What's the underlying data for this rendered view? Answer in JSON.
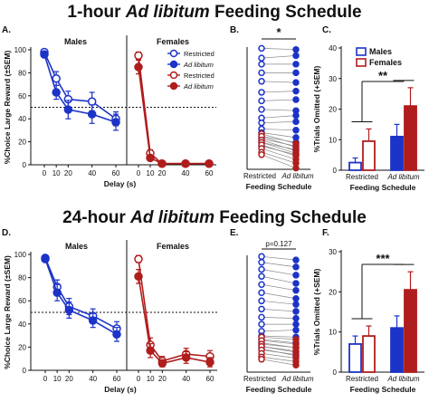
{
  "colors": {
    "blue": "#1c33c8",
    "red": "#b01d1d",
    "black": "#111111",
    "grey": "#888888"
  },
  "figure": {
    "title_top": {
      "pre": "1-hour ",
      "italic": "Ad libitum",
      "post": " Feeding Schedule"
    },
    "title_bottom": {
      "pre": "24-hour ",
      "italic": "Ad libitum",
      "post": " Feeding Schedule"
    }
  },
  "chart_data": [
    {
      "panel": "A.",
      "type": "line",
      "ylabel": "%Choice Large Reward (±SEM)",
      "xlabel": "Delay (s)",
      "ylim": [
        0,
        100
      ],
      "yticks": [
        0,
        20,
        40,
        60,
        80,
        100
      ],
      "xticks": [
        0,
        10,
        20,
        40,
        60
      ],
      "chance_line": 50,
      "groups": [
        {
          "title": "Males",
          "series": [
            {
              "name": "Restricted",
              "color": "blue",
              "filled": false,
              "x": [
                0,
                10,
                20,
                40,
                60
              ],
              "y": [
                98,
                75,
                57,
                55,
                40
              ],
              "sem": [
                2,
                6,
                7,
                8,
                6
              ]
            },
            {
              "name": "Ad libitum",
              "color": "blue",
              "filled": true,
              "x": [
                0,
                10,
                20,
                40,
                60
              ],
              "y": [
                96,
                63,
                48,
                44,
                37
              ],
              "sem": [
                2,
                6,
                8,
                8,
                7
              ]
            }
          ]
        },
        {
          "title": "Females",
          "series": [
            {
              "name": "Restricted",
              "color": "red",
              "filled": false,
              "x": [
                0,
                10,
                20,
                40,
                60
              ],
              "y": [
                95,
                10,
                1,
                1,
                1
              ],
              "sem": [
                3,
                3,
                1,
                1,
                1
              ]
            },
            {
              "name": "Ad libitum",
              "color": "red",
              "filled": true,
              "x": [
                0,
                10,
                20,
                40,
                60
              ],
              "y": [
                85,
                6,
                1,
                1,
                1
              ],
              "sem": [
                6,
                2,
                1,
                1,
                1
              ]
            }
          ]
        }
      ]
    },
    {
      "panel": "B.",
      "type": "scatter",
      "categories": [
        "Restricted",
        "Ad libitum"
      ],
      "xlabel": "Feeding Schedule",
      "annotation": "*",
      "ylim": [
        0,
        100
      ],
      "restricted_blue": [
        99,
        91,
        86,
        79,
        72,
        63,
        56,
        49,
        42,
        38,
        33,
        30,
        27,
        25,
        22,
        19
      ],
      "restricted_red": [
        29,
        27,
        24,
        22,
        20,
        17,
        14,
        12
      ],
      "libitum_blue": [
        98,
        93,
        86,
        79,
        71,
        64,
        57,
        48,
        44,
        39,
        32,
        26,
        22,
        19,
        16,
        12
      ],
      "libitum_red": [
        21,
        18,
        15,
        13,
        11,
        8,
        5,
        1
      ]
    },
    {
      "panel": "C.",
      "type": "bar",
      "ylabel": "%Trials Omitted (+SEM)",
      "xlabel": "Feeding Schedule",
      "ylim": [
        0,
        40
      ],
      "yticks": [
        0,
        10,
        20,
        30,
        40
      ],
      "categories": [
        "Restricted",
        "Ad libitum"
      ],
      "legend": {
        "position": "top-right",
        "items": [
          "Males",
          "Females"
        ]
      },
      "series": [
        {
          "name": "Males",
          "color": "blue",
          "values": [
            2.5,
            11
          ],
          "sem": [
            1.5,
            4
          ]
        },
        {
          "name": "Females",
          "color": "red",
          "values": [
            9.5,
            21
          ],
          "sem": [
            4,
            6
          ]
        }
      ],
      "annotation": "**"
    },
    {
      "panel": "D.",
      "type": "line",
      "ylabel": "%Choice Large Reward (±SEM)",
      "xlabel": "Delay (s)",
      "ylim": [
        0,
        100
      ],
      "yticks": [
        0,
        20,
        40,
        60,
        80,
        100
      ],
      "xticks": [
        0,
        10,
        20,
        40,
        60
      ],
      "chance_line": 50,
      "groups": [
        {
          "title": "Males",
          "series": [
            {
              "name": "Restricted",
              "color": "blue",
              "filled": false,
              "x": [
                0,
                10,
                20,
                40,
                60
              ],
              "y": [
                97,
                72,
                55,
                47,
                36
              ],
              "sem": [
                2,
                6,
                7,
                6,
                6
              ]
            },
            {
              "name": "Ad libitum",
              "color": "blue",
              "filled": true,
              "x": [
                0,
                10,
                20,
                40,
                60
              ],
              "y": [
                96,
                67,
                52,
                43,
                31
              ],
              "sem": [
                2,
                7,
                7,
                6,
                6
              ]
            }
          ]
        },
        {
          "title": "Females",
          "series": [
            {
              "name": "Restricted",
              "color": "red",
              "filled": false,
              "x": [
                0,
                10,
                20,
                40,
                60
              ],
              "y": [
                96,
                22,
                8,
                14,
                12
              ],
              "sem": [
                3,
                6,
                4,
                5,
                5
              ]
            },
            {
              "name": "Ad libitum",
              "color": "red",
              "filled": true,
              "x": [
                0,
                10,
                20,
                40,
                60
              ],
              "y": [
                81,
                17,
                6,
                11,
                7
              ],
              "sem": [
                6,
                6,
                3,
                5,
                4
              ]
            }
          ]
        }
      ]
    },
    {
      "panel": "E.",
      "type": "scatter",
      "categories": [
        "Restricted",
        "Ad libitum"
      ],
      "xlabel": "Feeding Schedule",
      "annotation": "p=0.127",
      "ylim": [
        0,
        100
      ],
      "restricted_blue": [
        99,
        94,
        88,
        82,
        75,
        68,
        61,
        54,
        47,
        41,
        35,
        31,
        28,
        25,
        22,
        20
      ],
      "restricted_red": [
        30,
        27,
        24,
        22,
        19,
        16,
        13,
        11
      ],
      "libitum_blue": [
        96,
        90,
        83,
        76,
        70,
        63,
        58,
        52,
        46,
        41,
        36,
        30,
        25,
        21,
        17,
        14
      ],
      "libitum_red": [
        28,
        24,
        21,
        18,
        15,
        12,
        9,
        6
      ]
    },
    {
      "panel": "F.",
      "type": "bar",
      "ylabel": "%Trials Omitted (+SEM)",
      "xlabel": "Feeding Schedule",
      "ylim": [
        0,
        30
      ],
      "yticks": [
        0,
        10,
        20,
        30
      ],
      "categories": [
        "Restricted",
        "Ad libitum"
      ],
      "series": [
        {
          "name": "Males",
          "color": "blue",
          "values": [
            7,
            11
          ],
          "sem": [
            2,
            3
          ]
        },
        {
          "name": "Females",
          "color": "red",
          "values": [
            9,
            20.5
          ],
          "sem": [
            2.5,
            4.5
          ]
        }
      ],
      "annotation": "***"
    }
  ]
}
